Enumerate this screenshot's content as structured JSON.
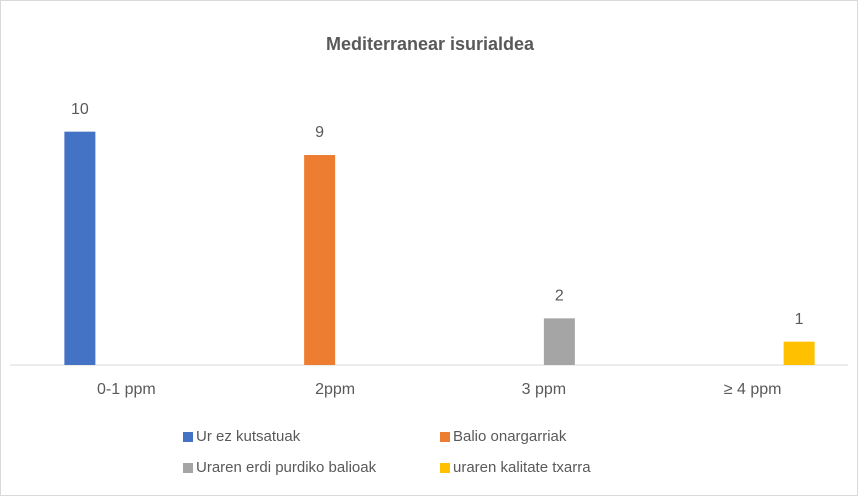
{
  "chart_data": {
    "type": "bar",
    "title": "Mediterranear isurialdea",
    "categories": [
      "0-1 ppm",
      "2ppm",
      "3 ppm",
      "≥ 4 ppm"
    ],
    "series": [
      {
        "name": "Ur ez kutsatuak",
        "color": "#4472c4",
        "values": [
          10,
          null,
          null,
          null
        ]
      },
      {
        "name": "Balio onargarriak",
        "color": "#ed7d31",
        "values": [
          null,
          9,
          null,
          null
        ]
      },
      {
        "name": "Uraren erdi purdiko balioak",
        "color": "#a5a5a5",
        "values": [
          null,
          null,
          2,
          null
        ]
      },
      {
        "name": "uraren kalitate txarra",
        "color": "#ffc000",
        "values": [
          null,
          null,
          null,
          1
        ]
      }
    ],
    "ylim": [
      0,
      12
    ],
    "legend": "bottom"
  }
}
